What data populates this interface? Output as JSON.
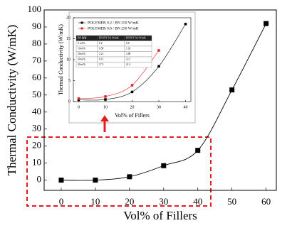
{
  "chart_data": [
    {
      "type": "scatter",
      "xlabel": "Vol% of Fillers",
      "ylabel": "Thermal Conductivity (W/mK)",
      "x": [
        0,
        10,
        20,
        30,
        40,
        50,
        60
      ],
      "series": [
        {
          "color": "#000000",
          "values": [
            0,
            0,
            2,
            8.5,
            17.5,
            53,
            92
          ]
        }
      ],
      "xlim": [
        -5,
        63
      ],
      "ylim": [
        -6,
        100
      ],
      "xticks": [
        0,
        10,
        20,
        30,
        40,
        50,
        60
      ],
      "yticks": [
        0,
        10,
        20,
        30,
        40,
        50,
        60,
        70,
        80,
        90,
        100
      ],
      "trendline": true
    },
    {
      "type": "scatter",
      "xlabel": "Vol% of Fillers",
      "ylabel": "Thermal Conductivity (W/mK)",
      "x": [
        0,
        10,
        20,
        30,
        40
      ],
      "series": [
        {
          "name": "POLYMER 0.2 / BN 250 W/mK",
          "color": "#000000",
          "values": [
            0.4,
            0.5,
            2.3,
            8.4,
            18.5
          ]
        },
        {
          "name": "POLYMER 0.6 / BN 250 W/mK",
          "color": "#e02020",
          "values": [
            0.7,
            1.2,
            3.9,
            12.2,
            null
          ]
        }
      ],
      "xlim": [
        -2,
        42
      ],
      "ylim": [
        0,
        20
      ],
      "xticks": [
        0,
        10,
        20,
        30,
        40
      ],
      "yticks": [
        0,
        5,
        10,
        15,
        20
      ],
      "trendline": true,
      "table": {
        "header": [
          "BN 함량",
          "EPOXY 0.2 W/mK",
          "EPOXY 0.6 W/mK"
        ],
        "rows": [
          [
            "0 vol%",
            "0.2",
            "0.6"
          ],
          [
            "10vol%",
            "0.58",
            "1.02"
          ],
          [
            "20vol%",
            "2.21",
            "3.88"
          ],
          [
            "30vol%",
            "8.15",
            "12.1"
          ],
          [
            "40vol%",
            "17.5",
            "21.4"
          ]
        ]
      }
    }
  ]
}
